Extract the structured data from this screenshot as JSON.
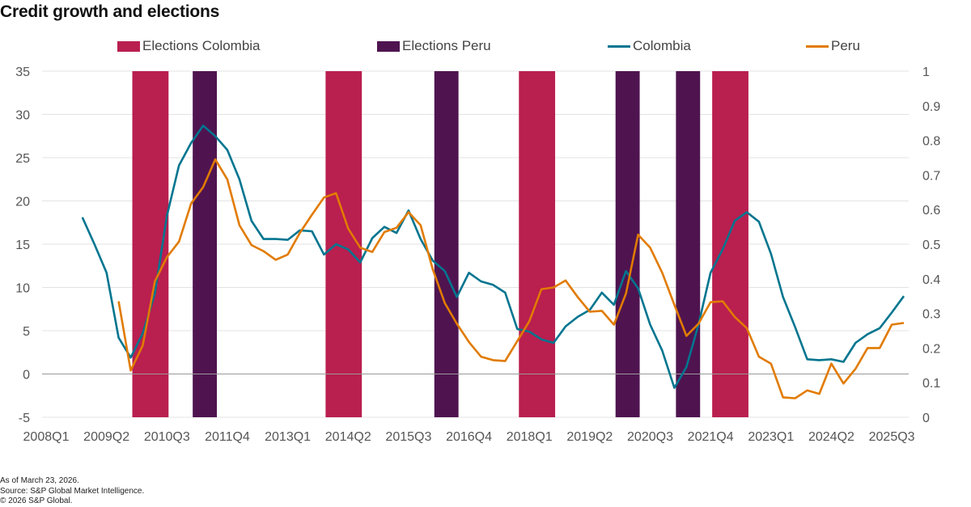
{
  "title": "Credit growth and elections",
  "footer": {
    "as_of": "As of March 23, 2026.",
    "source": "Source: S&P Global Market Intelligence.",
    "copyright": "© 2026 S&P Global."
  },
  "chart_data": {
    "type": "line",
    "title": "Credit growth and elections",
    "legend_position": "top",
    "grid": true,
    "categories": [
      "2008Q1",
      "2008Q2",
      "2008Q3",
      "2008Q4",
      "2009Q1",
      "2009Q2",
      "2009Q3",
      "2009Q4",
      "2010Q1",
      "2010Q2",
      "2010Q3",
      "2010Q4",
      "2011Q1",
      "2011Q2",
      "2011Q3",
      "2011Q4",
      "2012Q1",
      "2012Q2",
      "2012Q3",
      "2012Q4",
      "2013Q1",
      "2013Q2",
      "2013Q3",
      "2013Q4",
      "2014Q1",
      "2014Q2",
      "2014Q3",
      "2014Q4",
      "2015Q1",
      "2015Q2",
      "2015Q3",
      "2015Q4",
      "2016Q1",
      "2016Q2",
      "2016Q3",
      "2016Q4",
      "2017Q1",
      "2017Q2",
      "2017Q3",
      "2017Q4",
      "2018Q1",
      "2018Q2",
      "2018Q3",
      "2018Q4",
      "2019Q1",
      "2019Q2",
      "2019Q3",
      "2019Q4",
      "2020Q1",
      "2020Q2",
      "2020Q3",
      "2020Q4",
      "2021Q1",
      "2021Q2",
      "2021Q3",
      "2021Q4",
      "2022Q1",
      "2022Q2",
      "2022Q3",
      "2022Q4",
      "2023Q1",
      "2023Q2",
      "2023Q3",
      "2023Q4",
      "2024Q1",
      "2024Q2",
      "2024Q3",
      "2024Q4",
      "2025Q1",
      "2025Q2",
      "2025Q3",
      "2025Q4"
    ],
    "x_tick_labels": [
      "2008Q1",
      "2009Q2",
      "2010Q3",
      "2011Q4",
      "2013Q1",
      "2014Q2",
      "2015Q3",
      "2016Q4",
      "2018Q1",
      "2019Q2",
      "2020Q3",
      "2021Q4",
      "2023Q1",
      "2024Q2",
      "2025Q3"
    ],
    "y_left": {
      "range": [
        -5,
        35
      ],
      "ticks": [
        -5,
        0,
        5,
        10,
        15,
        20,
        25,
        30,
        35
      ]
    },
    "y_right": {
      "range": [
        0,
        1
      ],
      "ticks": [
        "0",
        "0.1",
        "0.2",
        "0.3",
        "0.4",
        "0.5",
        "0.6",
        "0.7",
        "0.8",
        "0.9",
        "1"
      ]
    },
    "series": [
      {
        "name": "Colombia",
        "color": "#00758F",
        "axis": "left",
        "values": [
          null,
          null,
          null,
          18.1,
          15.0,
          11.7,
          4.2,
          1.9,
          4.7,
          9.3,
          18.3,
          24.1,
          26.7,
          28.7,
          27.5,
          25.9,
          22.5,
          17.7,
          15.6,
          15.6,
          15.5,
          16.6,
          16.5,
          13.8,
          15.0,
          14.4,
          12.9,
          15.7,
          17.0,
          16.3,
          18.9,
          15.6,
          13.1,
          11.9,
          8.9,
          11.7,
          10.7,
          10.3,
          9.4,
          5.2,
          4.9,
          4.0,
          3.6,
          5.5,
          6.6,
          7.4,
          9.4,
          8.0,
          11.9,
          9.9,
          5.7,
          2.7,
          -1.6,
          0.8,
          5.7,
          11.7,
          14.4,
          17.7,
          18.7,
          17.6,
          13.9,
          8.9,
          5.4,
          1.7,
          1.6,
          1.7,
          1.4,
          3.6,
          4.6,
          5.3,
          7.1,
          9.0
        ]
      },
      {
        "name": "Peru",
        "color": "#E17B00",
        "axis": "left",
        "values": [
          null,
          null,
          null,
          null,
          null,
          null,
          8.4,
          0.4,
          3.3,
          10.7,
          13.5,
          15.3,
          19.7,
          21.6,
          24.8,
          22.5,
          17.2,
          14.9,
          14.2,
          13.2,
          13.8,
          16.3,
          18.4,
          20.4,
          20.9,
          16.8,
          14.6,
          14.1,
          16.4,
          16.9,
          18.7,
          17.2,
          12.1,
          8.2,
          5.8,
          3.7,
          2.0,
          1.6,
          1.5,
          3.8,
          6.1,
          9.8,
          10.0,
          10.8,
          8.9,
          7.2,
          7.3,
          5.7,
          9.3,
          16.1,
          14.6,
          11.7,
          8.0,
          4.4,
          5.8,
          8.3,
          8.4,
          6.6,
          5.3,
          2.0,
          1.2,
          -2.7,
          -2.8,
          -1.9,
          -2.3,
          1.2,
          -1.1,
          0.6,
          3.0,
          3.0,
          5.7,
          5.9
        ]
      }
    ],
    "bands": [
      {
        "name": "Elections Colombia",
        "color": "#B91F4F",
        "axis": "right",
        "value": 1,
        "periods": [
          [
            "2009Q4",
            "2010Q3"
          ],
          [
            "2013Q4",
            "2014Q3"
          ],
          [
            "2017Q4",
            "2018Q3"
          ],
          [
            "2021Q4",
            "2022Q3"
          ]
        ]
      },
      {
        "name": "Elections Peru",
        "color": "#4F1450",
        "axis": "right",
        "value": 1,
        "periods": [
          [
            "2011Q1",
            "2011Q3"
          ],
          [
            "2016Q1",
            "2016Q3"
          ],
          [
            "2019Q4",
            "2020Q2"
          ],
          [
            "2021Q1",
            "2021Q3"
          ]
        ]
      }
    ]
  }
}
